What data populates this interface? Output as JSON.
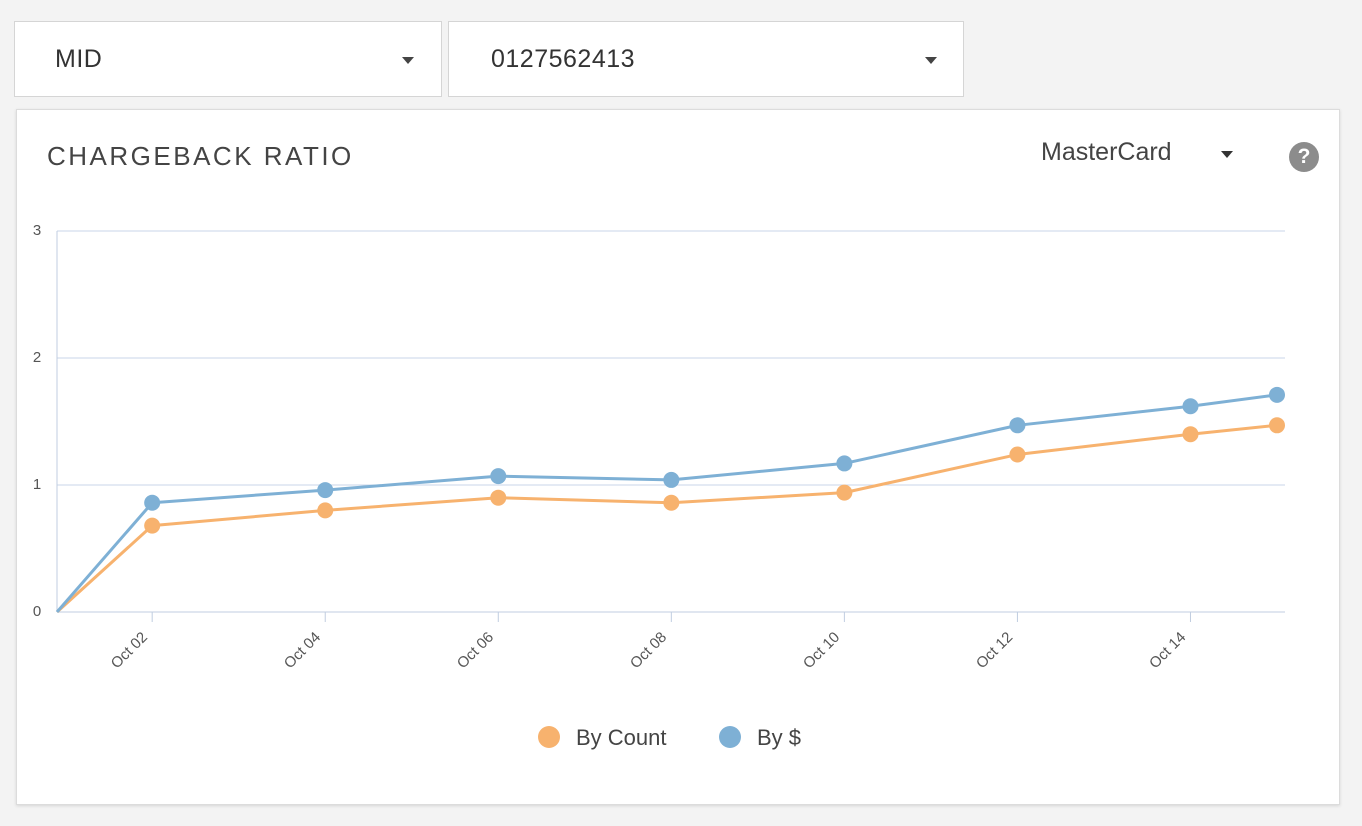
{
  "filters": {
    "mid_label": "MID",
    "mid_value": "0127562413"
  },
  "card": {
    "title": "CHARGEBACK RATIO",
    "card_brand": "MasterCard",
    "help_glyph": "?"
  },
  "colors": {
    "by_count": "#f7b26e",
    "by_dollar": "#7eb0d5",
    "grid": "#c8d6ea",
    "axis": "#c0cde0"
  },
  "chart_data": {
    "type": "line",
    "title": "CHARGEBACK RATIO",
    "xlabel": "",
    "ylabel": "",
    "ylim": [
      0,
      3
    ],
    "yticks": [
      0,
      1,
      2,
      3
    ],
    "x_ticks": [
      "Oct 02",
      "Oct 04",
      "Oct 06",
      "Oct 08",
      "Oct 10",
      "Oct 12",
      "Oct 14"
    ],
    "x_domain": [
      1,
      15.1
    ],
    "x": [
      1,
      2.1,
      4.1,
      6.1,
      8.1,
      10.1,
      12.1,
      14.1,
      15.1
    ],
    "series": [
      {
        "name": "By Count",
        "values": [
          0,
          0.68,
          0.8,
          0.9,
          0.86,
          0.94,
          1.24,
          1.4,
          1.47
        ]
      },
      {
        "name": "By $",
        "values": [
          0,
          0.86,
          0.96,
          1.07,
          1.04,
          1.17,
          1.47,
          1.62,
          1.71
        ]
      }
    ],
    "legend": [
      "By Count",
      "By $"
    ],
    "legend_position": "bottom-center",
    "grid": true
  }
}
